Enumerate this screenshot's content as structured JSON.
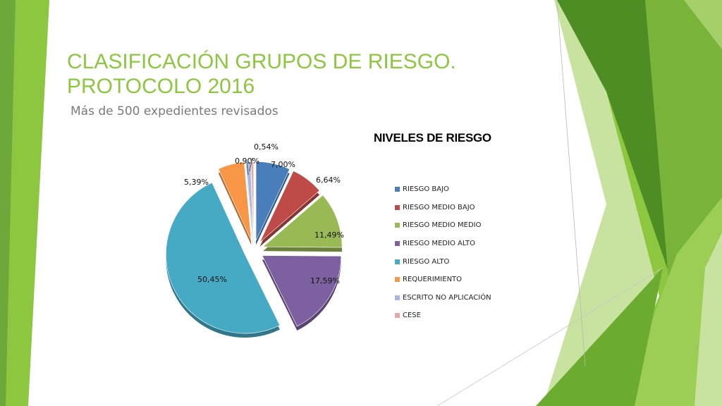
{
  "slide": {
    "title": "CLASIFICACIÓN GRUPOS DE RIESGO. PROTOCOLO 2016",
    "subtitle": "Más de 500 expedientes revisados"
  },
  "chart_data": {
    "type": "pie",
    "title": "NIVELES DE RIESGO",
    "legend_position": "right",
    "categories": [
      "RIESGO BAJO",
      "RIESGO MEDIO BAJO",
      "RIESGO MEDIO MEDIO",
      "RIESGO MEDIO ALTO",
      "RIESGO ALTO",
      "REQUERIMIENTO",
      "ESCRITO NO APLICACIÓN",
      "CESE"
    ],
    "values": [
      7.0,
      6.64,
      11.49,
      17.59,
      50.45,
      5.39,
      0.9,
      0.54
    ],
    "labels": [
      "7,00%",
      "6,64%",
      "11,49%",
      "17,59%",
      "50,45%",
      "5,39%",
      "0,90%",
      "0,54%"
    ],
    "colors": [
      "#4a7ebb",
      "#be4b48",
      "#98b954",
      "#7d60a0",
      "#46aac5",
      "#f79646",
      "#a5b9e0",
      "#e6a9a8"
    ]
  },
  "theme": {
    "accent": "#8dc63f",
    "dark_green": "#4a8a1e",
    "light_green": "#c8e3a0"
  }
}
